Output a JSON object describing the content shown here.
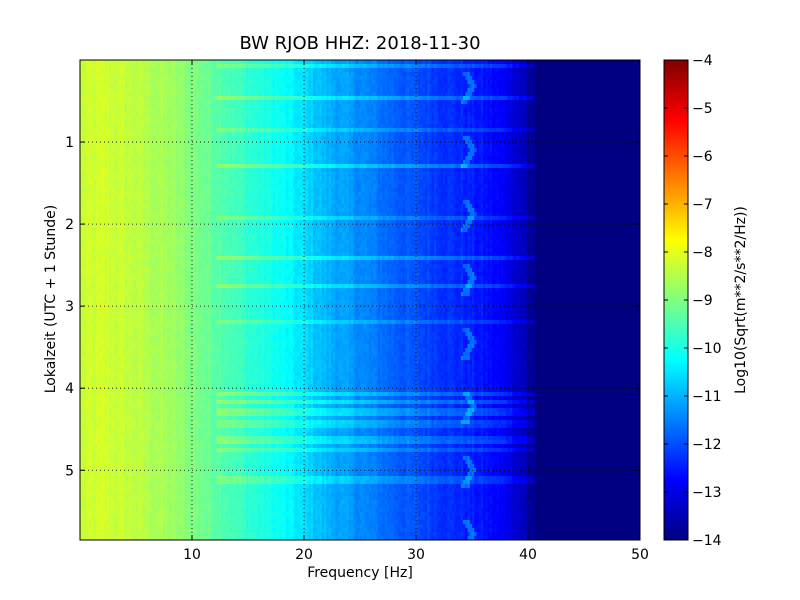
{
  "chart_data": {
    "type": "heatmap",
    "title": "BW RJOB HHZ: 2018-11-30",
    "xlabel": "Frequency [Hz]",
    "ylabel": "Lokalzeit (UTC + 1 Stunde)",
    "xlim": [
      0,
      50
    ],
    "ylim": [
      5.85,
      0.0
    ],
    "x_ticks": [
      10,
      20,
      30,
      40,
      50
    ],
    "y_ticks": [
      1,
      2,
      3,
      4,
      5
    ],
    "grid": true,
    "colormap": "jet",
    "colorbar": {
      "label": "Log10(Sqrt(m**2/s**2/Hz))",
      "range": [
        -14,
        -4
      ],
      "ticks": [
        -14,
        -13,
        -12,
        -11,
        -10,
        -9,
        -8,
        -7,
        -6,
        -5,
        -4
      ]
    },
    "spectrum_profile": {
      "frequency_hz": [
        0,
        2,
        5,
        8,
        10,
        12,
        15,
        18,
        20,
        22,
        25,
        28,
        30,
        33,
        36,
        38,
        39.5,
        41,
        45,
        50
      ],
      "log_amplitude": [
        -8.3,
        -8.2,
        -8.4,
        -8.7,
        -9.0,
        -9.3,
        -9.8,
        -10.2,
        -10.6,
        -11.0,
        -11.4,
        -11.8,
        -12.0,
        -12.3,
        -12.6,
        -12.9,
        -13.4,
        -14.0,
        -14.0,
        -14.0
      ]
    }
  }
}
